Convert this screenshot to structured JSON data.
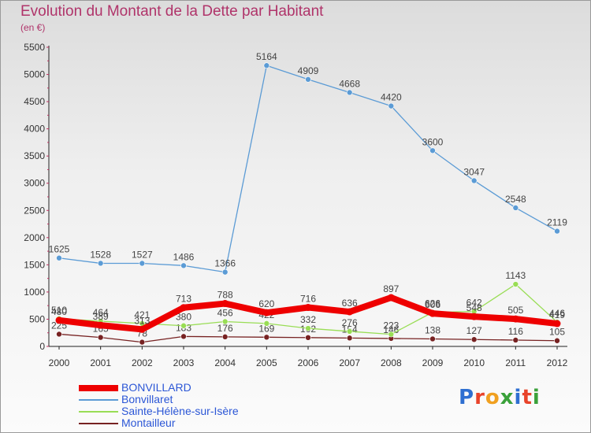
{
  "header": {
    "title": "Evolution du Montant de la Dette par Habitant",
    "subtitle": "(en €)"
  },
  "logo": {
    "letters": [
      "P",
      "r",
      "o",
      "x",
      "i",
      "t",
      "i"
    ],
    "colors": [
      "#2e6fd1",
      "#e8432a",
      "#f0a020",
      "#3aa13a",
      "#2e6fd1",
      "#e8432a",
      "#3aa13a"
    ]
  },
  "chart_data": {
    "type": "line",
    "x": [
      "2000",
      "2001",
      "2002",
      "2003",
      "2004",
      "2005",
      "2006",
      "2007",
      "2008",
      "2009",
      "2010",
      "2011",
      "2012"
    ],
    "ylim": [
      0,
      5500
    ],
    "yticks": [
      0,
      500,
      1000,
      1500,
      2000,
      2500,
      3000,
      3500,
      4000,
      4500,
      5000,
      5500
    ],
    "grid": false,
    "legend_position": "bottom-left",
    "series": [
      {
        "name": "BONVILLARD",
        "color": "#ee0000",
        "values": [
          480,
          389,
          313,
          713,
          788,
          620,
          716,
          636,
          897,
          606,
          548,
          505,
          419
        ],
        "labels": [
          "480",
          "389",
          "313",
          "713",
          "788",
          "620",
          "716",
          "636",
          "897",
          "606",
          "548",
          "505",
          "419"
        ]
      },
      {
        "name": "Bonvillaret",
        "color": "#5b9bd5",
        "values": [
          1625,
          1528,
          1527,
          1486,
          1366,
          5164,
          4909,
          4668,
          4420,
          3600,
          3047,
          2548,
          2119
        ],
        "labels": [
          "1625",
          "1528",
          "1527",
          "1486",
          "1366",
          "5164",
          "4909",
          "4668",
          "4420",
          "3600",
          "3047",
          "2548",
          "2119"
        ]
      },
      {
        "name": "Sainte-Hélène-sur-Isère",
        "color": "#99dd55",
        "values": [
          510,
          464,
          421,
          380,
          456,
          422,
          332,
          276,
          223,
          626,
          642,
          1143,
          446
        ],
        "labels": [
          "510",
          "464",
          "421",
          "380",
          "456",
          "422",
          "332",
          "276",
          "223",
          "626",
          "642",
          "1143",
          "446"
        ]
      },
      {
        "name": "Montailleur",
        "color": "#772222",
        "values": [
          225,
          165,
          78,
          183,
          176,
          169,
          162,
          154,
          146,
          138,
          127,
          116,
          105
        ],
        "labels": [
          "225",
          "165",
          "78",
          "183",
          "176",
          "169",
          "162",
          "154",
          "146",
          "138",
          "127",
          "116",
          "105"
        ]
      }
    ]
  }
}
